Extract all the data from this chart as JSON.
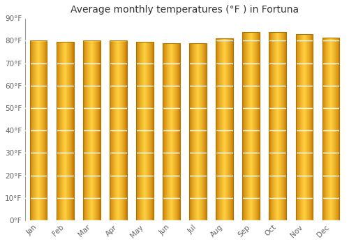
{
  "title": "Average monthly temperatures (°F ) in Fortuna",
  "months": [
    "Jan",
    "Feb",
    "Mar",
    "Apr",
    "May",
    "Jun",
    "Jul",
    "Aug",
    "Sep",
    "Oct",
    "Nov",
    "Dec"
  ],
  "values": [
    80,
    79.5,
    80,
    80,
    79.5,
    79,
    79,
    81,
    84,
    84,
    83,
    81.5
  ],
  "ylim": [
    0,
    90
  ],
  "yticks": [
    0,
    10,
    20,
    30,
    40,
    50,
    60,
    70,
    80,
    90
  ],
  "ytick_labels": [
    "0°F",
    "10°F",
    "20°F",
    "30°F",
    "40°F",
    "50°F",
    "60°F",
    "70°F",
    "80°F",
    "90°F"
  ],
  "bar_edge_color": "#CC8800",
  "bar_center_color": "#FFD44A",
  "bar_mid_color": "#FFAA00",
  "bar_bottom_color": "#FF9900",
  "background_color": "#FFFFFF",
  "plot_bg_color": "#FFFFFF",
  "grid_color": "#DDDDEE",
  "title_fontsize": 10,
  "tick_fontsize": 7.5,
  "bar_width": 0.65,
  "n_strips": 60
}
